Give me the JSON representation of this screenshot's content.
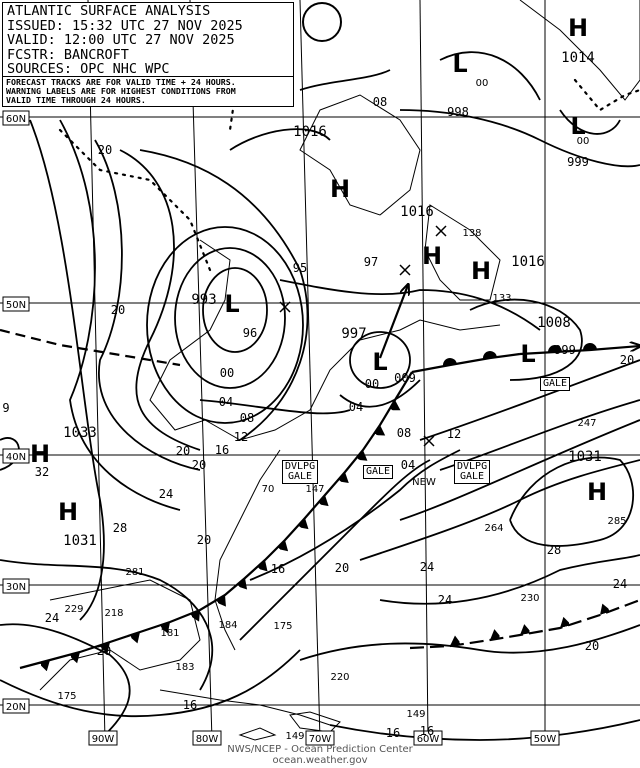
{
  "header": {
    "title": "ATLANTIC SURFACE ANALYSIS",
    "issued": "ISSUED: 15:32 UTC 27 NOV 2025",
    "valid": "VALID:  12:00 UTC 27 NOV 2025",
    "forecaster": "FCSTR:  BANCROFT",
    "sources": "SOURCES: OPC NHC WPC"
  },
  "note": [
    "FORECAST TRACKS ARE FOR VALID TIME + 24 HOURS.",
    "WARNING LABELS ARE FOR HIGHEST CONDITIONS FROM",
    "VALID TIME THROUGH 24 HOURS."
  ],
  "logo": "NOAA",
  "footer": {
    "line1": "NWS/NCEP - Ocean Prediction Center",
    "line2": "ocean.weather.gov"
  },
  "latitudes": [
    "60N",
    "50N",
    "40N",
    "30N",
    "20N"
  ],
  "longitudes": [
    "90W",
    "80W",
    "70W",
    "60W",
    "50W"
  ],
  "highs": [
    {
      "sym": "H",
      "p": "1014"
    },
    {
      "sym": "H",
      "p": "1016"
    },
    {
      "sym": "H",
      "p": "1016"
    },
    {
      "sym": "H",
      "p": "1016"
    },
    {
      "sym": "H",
      "p": "1033"
    },
    {
      "sym": "H",
      "p": "1031"
    },
    {
      "sym": "H",
      "p": "1031"
    }
  ],
  "lows": [
    {
      "sym": "L",
      "p": "00"
    },
    {
      "sym": "L",
      "p": "00"
    },
    {
      "sym": "L",
      "p": "993"
    },
    {
      "sym": "L",
      "p": "997"
    },
    {
      "sym": "L",
      "p": "1008"
    }
  ],
  "isobar_labels": [
    "998",
    "999",
    "08",
    "20",
    "95",
    "97",
    "20",
    "00",
    "04",
    "08",
    "12",
    "16",
    "20",
    "20",
    "24",
    "28",
    "20",
    "16",
    "20",
    "24",
    "24",
    "28",
    "20",
    "24",
    "04",
    "12",
    "08",
    "04",
    "20",
    "32",
    "24",
    "20",
    "16",
    "16",
    "16",
    "96",
    "00",
    "009",
    "999",
    "9"
  ],
  "warnings": [
    "DVLPG\nGALE",
    "GALE",
    "DVLPG\nGALE",
    "GALE"
  ],
  "new_label": "NEW",
  "obs": [
    "138",
    "133",
    "247",
    "264",
    "285",
    "230",
    "281",
    "229",
    "218",
    "181",
    "184",
    "175",
    "175",
    "220",
    "149",
    "149",
    "70",
    "147",
    "183"
  ]
}
